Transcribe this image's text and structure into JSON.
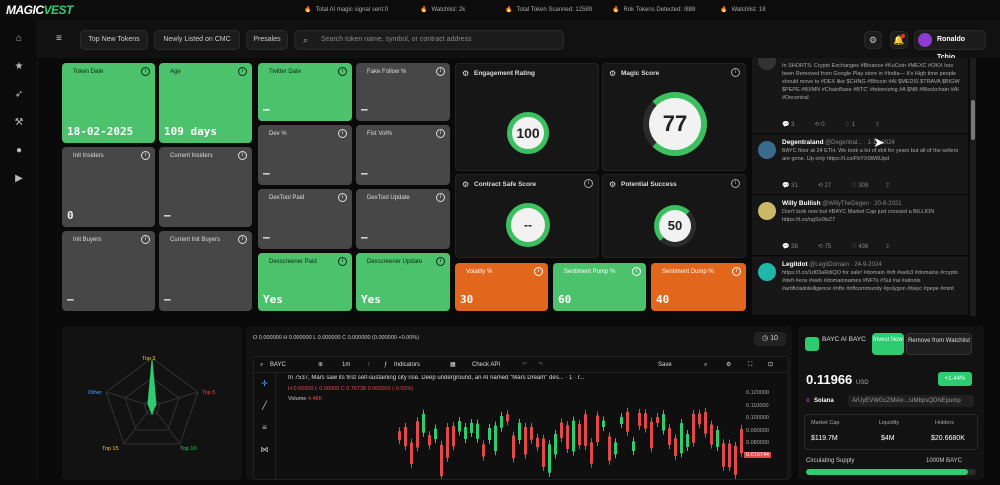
{
  "brand": {
    "part1": "MAGIC",
    "part2": "VEST"
  },
  "ticker": [
    {
      "text": "Total AI magic signal sent:0"
    },
    {
      "text": "Watchlist: 2k"
    },
    {
      "text": "Total Token Scanned: 12589"
    },
    {
      "text": "Rok Tokens Detected: /888"
    },
    {
      "text": "Watchlist: 18"
    }
  ],
  "nav": {
    "icons": [
      "home-icon",
      "star-icon",
      "rocket-icon",
      "tools-icon",
      "user-icon",
      "video-icon"
    ]
  },
  "toolbar": {
    "collapse": "≡",
    "tabs": [
      "Top New Tokens",
      "Newly Listed on CMC",
      "Presales"
    ],
    "search_placeholder": "Search token name, symbol, or contract address",
    "user_name": "Ronaldo Tchio"
  },
  "cards": {
    "token_date": {
      "label": "Token Date",
      "value": "18-02-2025"
    },
    "age": {
      "label": "Age",
      "value": "109 days"
    },
    "twitter_date": {
      "label": "Twitter Date",
      "value": "—"
    },
    "fake_follow": {
      "label": "Fake Follow %",
      "value": "—"
    },
    "init_insiders": {
      "label": "Init Insiders",
      "value": "0"
    },
    "current_insiders": {
      "label": "Current Insiders",
      "value": "—"
    },
    "dev": {
      "label": "Dev %",
      "value": "—"
    },
    "fist_vol": {
      "label": "Fist Vol%",
      "value": "—"
    },
    "dextool_paid": {
      "label": "DexTool Paid",
      "value": "—"
    },
    "dextool_update": {
      "label": "DexTool Update",
      "value": "—"
    },
    "init_buyers": {
      "label": "Init Buyers",
      "value": "—"
    },
    "current_init_buyers": {
      "label": "Current Init Buyers",
      "value": "—"
    },
    "dexscreener_paid": {
      "label": "Dexscreener Paid",
      "value": "Yes"
    },
    "dexscreener_update": {
      "label": "Dexscreener Update",
      "value": "Yes"
    },
    "volatility": {
      "label": "Volatity %",
      "value": "30"
    },
    "sentiment_pump": {
      "label": "Sentiment Pump %",
      "value": "60"
    },
    "sentiment_dump": {
      "label": "Sentiment Dump %",
      "value": "40"
    },
    "engagement": {
      "label": "Engagement Rating",
      "value": "100"
    },
    "magic_score": {
      "label": "Magic Score",
      "value": "77"
    },
    "contract_safe": {
      "label": "Contract Safe Score",
      "value": "--"
    },
    "potential": {
      "label": "Potential Success",
      "value": "50"
    }
  },
  "tweets": [
    {
      "name": "",
      "handle": "",
      "text": "In SHORTS: Crypto Exchanges #Binance #KuCoin #MEXC #OKX has been Removed from Google Play store in #India— It's High time people should move to #DEX like $CHNG #Bitcoin #AI $MEDIS $TRAVA $BIGW $PEPE #BXMN #ChainBase #BTC’ #tokenizing #A $NB #Blockchain #AI #Decentral",
      "stats": [
        "3",
        "0",
        "1",
        ""
      ]
    },
    {
      "name": "Degentraland",
      "handle": "@Degentral... · 1-12-2024",
      "text": "BAYC floor at 24 ETH. We took a lot of shit for years but all of the sellers are gone. Up only https://t.co/FbYX0W6Upd",
      "stats": [
        "31",
        "27",
        "309",
        ""
      ]
    },
    {
      "name": "Willy Bullish",
      "handle": "@WillyTheDegen · 20-8-2021",
      "text": "Don't look now but #BAYC Market Cap just crossed a BILLION https://t.co/ogSo0lzZ7",
      "stats": [
        "38",
        "75",
        "436",
        ""
      ]
    },
    {
      "name": "Legitdot",
      "handle": "@LegitDomain · 24-9-2024",
      "text": "https://t.co/1d03aRdiQO for sale! #domain #nft #web3 #domains #crypto #defi #ens #web #domainnames #NFTs #Sui #ai #aitools #artificialintelligence #nfts #nftcommunity #polygon #bayc #pepe #mint",
      "stats": [
        "",
        "",
        "",
        ""
      ]
    }
  ],
  "radar": {
    "labels": [
      "Top 3",
      "Top 5",
      "Top 10",
      "Top 15",
      "Other"
    ]
  },
  "chart": {
    "ohlc": "O 0.000000 H 0.000000 L 0.000000 C 0.000000 (0.000000 +0.00%)",
    "badge": "10",
    "symbol": "BAYC",
    "interval": "1m",
    "indicators": "Indicators",
    "check_api": "Check API",
    "save": "Save",
    "headline": "In 7537, Mars saw its first self-sustaining city rise. Deep underground, an AI named \"Mars Dream\" des... · 1 · r...",
    "ohlc2": "H 0.00000 L 0.00000 C 0.76738 0.000000 (-0.03%)",
    "volume_label": "Volume",
    "volume_value": "4.48K",
    "price_ticks": [
      "0.120000",
      "0.110000",
      "0.100000",
      "0.090000",
      "0.080000",
      "0.070000"
    ],
    "price_tag": "0.016744"
  },
  "token": {
    "name": "BAYC AI BAYC",
    "invest_label": "Invest Now",
    "remove_label": "Remove from Watchlist",
    "price": "0.11966",
    "currency": "USD",
    "change": "+1.44%",
    "network": "Solana",
    "address": "ArUyEVWGcZMiAx...srMbpsQDNEpump",
    "market_cap_label": "Market Cap",
    "market_cap": "$119.7M",
    "liquidity_label": "Liquidity",
    "liquidity": "$4M",
    "holders_label": "Holders",
    "holders": "$20.6680K",
    "supply_label": "Circulating Supply",
    "supply": "1000M BAYC",
    "supply_pct": 0.95
  },
  "colors": {
    "green": "#4cc26d",
    "orange": "#e2661b",
    "gray": "#474747"
  }
}
